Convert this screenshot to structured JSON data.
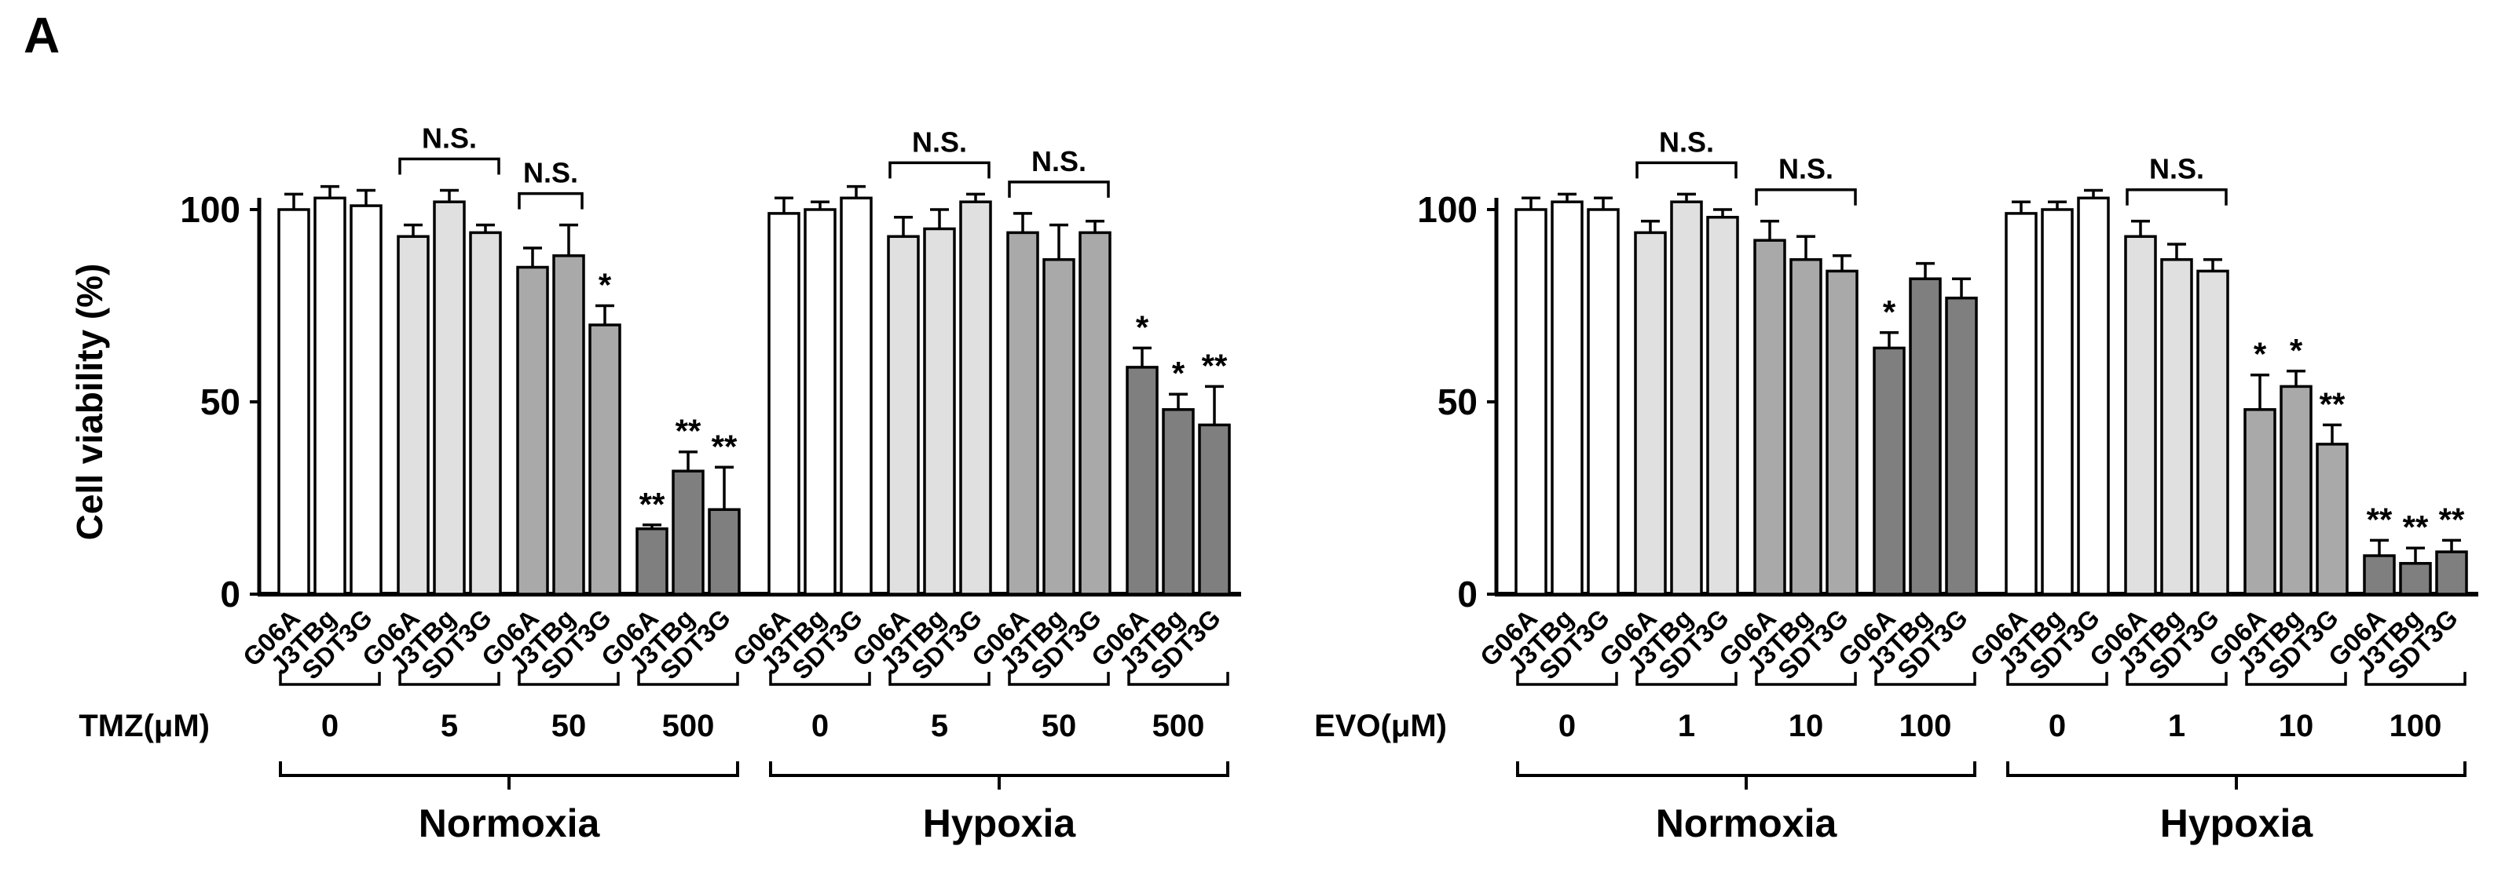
{
  "panel_label": "A",
  "y_axis": {
    "label": "Cell viability (%)",
    "ticks": [
      0,
      50,
      100
    ],
    "ymax": 115
  },
  "cell_lines": [
    "G06A",
    "J3TBg",
    "SDT3G"
  ],
  "condition_labels": [
    "Normoxia",
    "Hypoxia"
  ],
  "ns_label": "N.S.",
  "sig_symbols": {
    "single": "*",
    "double": "**"
  },
  "colors": {
    "dose0": "#ffffff",
    "dose1": "#e0e0e0",
    "dose2": "#a9a9a9",
    "dose3": "#7f7f7f",
    "ink": "#000000"
  },
  "chart_data": [
    {
      "type": "bar",
      "drug_label": "TMZ(μM)",
      "show_y_label": true,
      "ylabel": "Cell viability (%)",
      "ylim": [
        0,
        115
      ],
      "categories_per_group": [
        "G06A",
        "J3TBg",
        "SDT3G"
      ],
      "groups": [
        {
          "dose": "0",
          "condition": "Normoxia",
          "values": [
            100,
            103,
            101
          ],
          "errors": [
            4,
            3,
            4
          ],
          "sig": [
            "",
            "",
            ""
          ]
        },
        {
          "dose": "5",
          "condition": "Normoxia",
          "values": [
            93,
            102,
            94
          ],
          "errors": [
            3,
            3,
            2
          ],
          "sig": [
            "",
            "",
            ""
          ],
          "ns_span": [
            0,
            2
          ]
        },
        {
          "dose": "50",
          "condition": "Normoxia",
          "values": [
            85,
            88,
            70
          ],
          "errors": [
            5,
            8,
            5
          ],
          "sig": [
            "",
            "",
            "*"
          ],
          "ns_span": [
            0,
            1
          ]
        },
        {
          "dose": "500",
          "condition": "Normoxia",
          "values": [
            17,
            32,
            22
          ],
          "errors": [
            1,
            5,
            11
          ],
          "sig": [
            "**",
            "**",
            "**"
          ]
        },
        {
          "dose": "0",
          "condition": "Hypoxia",
          "values": [
            99,
            100,
            103
          ],
          "errors": [
            4,
            2,
            3
          ],
          "sig": [
            "",
            "",
            ""
          ]
        },
        {
          "dose": "5",
          "condition": "Hypoxia",
          "values": [
            93,
            95,
            102
          ],
          "errors": [
            5,
            5,
            2
          ],
          "sig": [
            "",
            "",
            ""
          ],
          "ns_span": [
            0,
            2
          ]
        },
        {
          "dose": "50",
          "condition": "Hypoxia",
          "values": [
            94,
            87,
            94
          ],
          "errors": [
            5,
            9,
            3
          ],
          "sig": [
            "",
            "",
            ""
          ],
          "ns_span": [
            0,
            2
          ]
        },
        {
          "dose": "500",
          "condition": "Hypoxia",
          "values": [
            59,
            48,
            44
          ],
          "errors": [
            5,
            4,
            10
          ],
          "sig": [
            "*",
            "*",
            "**"
          ]
        }
      ]
    },
    {
      "type": "bar",
      "drug_label": "EVO(μM)",
      "show_y_label": false,
      "ylabel": "",
      "ylim": [
        0,
        115
      ],
      "categories_per_group": [
        "G06A",
        "J3TBg",
        "SDT3G"
      ],
      "groups": [
        {
          "dose": "0",
          "condition": "Normoxia",
          "values": [
            100,
            102,
            100
          ],
          "errors": [
            3,
            2,
            3
          ],
          "sig": [
            "",
            "",
            ""
          ]
        },
        {
          "dose": "1",
          "condition": "Normoxia",
          "values": [
            94,
            102,
            98
          ],
          "errors": [
            3,
            2,
            2
          ],
          "sig": [
            "",
            "",
            ""
          ],
          "ns_span": [
            0,
            2
          ]
        },
        {
          "dose": "10",
          "condition": "Normoxia",
          "values": [
            92,
            87,
            84
          ],
          "errors": [
            5,
            6,
            4
          ],
          "sig": [
            "",
            "",
            ""
          ],
          "ns_span": [
            0,
            2
          ]
        },
        {
          "dose": "100",
          "condition": "Normoxia",
          "values": [
            64,
            82,
            77
          ],
          "errors": [
            4,
            4,
            5
          ],
          "sig": [
            "*",
            "",
            ""
          ]
        },
        {
          "dose": "0",
          "condition": "Hypoxia",
          "values": [
            99,
            100,
            103
          ],
          "errors": [
            3,
            2,
            2
          ],
          "sig": [
            "",
            "",
            ""
          ]
        },
        {
          "dose": "1",
          "condition": "Hypoxia",
          "values": [
            93,
            87,
            84
          ],
          "errors": [
            4,
            4,
            3
          ],
          "sig": [
            "",
            "",
            ""
          ],
          "ns_span": [
            0,
            2
          ]
        },
        {
          "dose": "10",
          "condition": "Hypoxia",
          "values": [
            48,
            54,
            39
          ],
          "errors": [
            9,
            4,
            5
          ],
          "sig": [
            "*",
            "*",
            "**"
          ]
        },
        {
          "dose": "100",
          "condition": "Hypoxia",
          "values": [
            10,
            8,
            11
          ],
          "errors": [
            4,
            4,
            3
          ],
          "sig": [
            "**",
            "**",
            "**"
          ]
        }
      ]
    }
  ]
}
